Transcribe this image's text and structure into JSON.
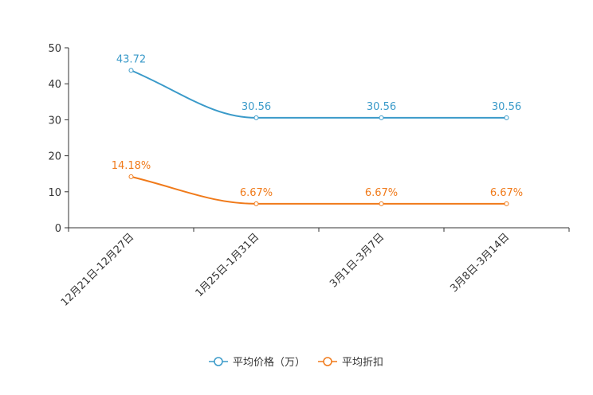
{
  "chart_data": {
    "type": "line",
    "title": "",
    "xlabel": "",
    "ylabel": "",
    "ylim": [
      0,
      50
    ],
    "yticks": [
      0,
      10,
      20,
      30,
      40,
      50
    ],
    "grid": false,
    "legend_position": "bottom-center",
    "categories": [
      "12月21日-12月27日",
      "1月25日-1月31日",
      "3月1日-3月7日",
      "3月8日-3月14日"
    ],
    "series": [
      {
        "name": "平均价格（万）",
        "color": "#3a9ac9",
        "values": [
          43.72,
          30.56,
          30.56,
          30.56
        ],
        "labels": [
          "43.72",
          "30.56",
          "30.56",
          "30.56"
        ]
      },
      {
        "name": "平均折扣",
        "color": "#f07a1a",
        "values": [
          14.18,
          6.67,
          6.67,
          6.67
        ],
        "labels": [
          "14.18%",
          "6.67%",
          "6.67%",
          "6.67%"
        ]
      }
    ]
  }
}
